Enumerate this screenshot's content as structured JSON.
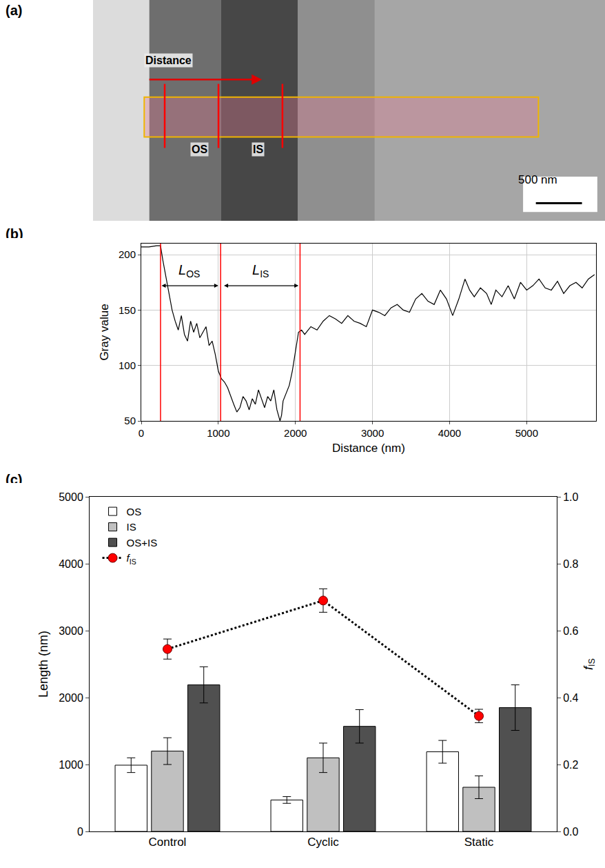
{
  "chart_data": [
    {
      "type": "image",
      "panel": "(a)",
      "labels": {
        "arrow": "Distance",
        "regions": [
          "OS",
          "IS"
        ],
        "scale_bar": "500 nm"
      }
    },
    {
      "type": "line",
      "panel": "(b)",
      "x_label": "Distance (nm)",
      "y_label": "Gray value",
      "x": [
        0,
        100,
        200,
        250,
        280,
        320,
        360,
        400,
        440,
        480,
        520,
        560,
        600,
        640,
        680,
        720,
        760,
        800,
        840,
        880,
        920,
        960,
        1000,
        1040,
        1080,
        1120,
        1160,
        1200,
        1240,
        1280,
        1320,
        1360,
        1400,
        1440,
        1480,
        1520,
        1560,
        1600,
        1640,
        1680,
        1720,
        1760,
        1800,
        1820,
        1840,
        1880,
        1920,
        1960,
        2000,
        2040,
        2080,
        2120,
        2200,
        2280,
        2360,
        2440,
        2520,
        2600,
        2680,
        2760,
        2840,
        2920,
        3000,
        3080,
        3160,
        3240,
        3320,
        3400,
        3480,
        3560,
        3640,
        3720,
        3800,
        3880,
        3960,
        4000,
        4040,
        4120,
        4200,
        4260,
        4320,
        4400,
        4480,
        4540,
        4600,
        4680,
        4760,
        4840,
        4920,
        5000,
        5080,
        5160,
        5240,
        5320,
        5400,
        5480,
        5560,
        5640,
        5720,
        5800,
        5880
      ],
      "values": [
        207,
        207,
        208,
        208,
        195,
        180,
        165,
        150,
        140,
        132,
        145,
        128,
        122,
        140,
        130,
        138,
        125,
        130,
        135,
        118,
        122,
        110,
        95,
        88,
        85,
        80,
        72,
        65,
        58,
        62,
        72,
        68,
        60,
        70,
        65,
        78,
        70,
        62,
        72,
        68,
        78,
        60,
        50,
        55,
        68,
        75,
        82,
        95,
        112,
        130,
        132,
        128,
        135,
        132,
        140,
        145,
        142,
        138,
        145,
        140,
        138,
        135,
        150,
        148,
        145,
        152,
        155,
        150,
        148,
        160,
        165,
        158,
        155,
        168,
        160,
        152,
        145,
        160,
        178,
        168,
        162,
        170,
        165,
        155,
        168,
        162,
        172,
        160,
        175,
        168,
        172,
        178,
        170,
        168,
        176,
        165,
        172,
        175,
        170,
        178,
        182
      ],
      "color": "#000000",
      "xlim": [
        0,
        5900
      ],
      "xticks": [
        0,
        1000,
        2000,
        3000,
        4000,
        5000
      ],
      "ylim": [
        50,
        210
      ],
      "yticks": [
        50,
        100,
        150,
        200
      ],
      "grid": true,
      "vlines": [
        250,
        1030,
        2060
      ],
      "vline_color": "#ff0000",
      "annotations": [
        {
          "label": "L",
          "subscript": "OS",
          "x0": 250,
          "x1": 1000,
          "y": 172
        },
        {
          "label": "L",
          "subscript": "IS",
          "x0": 1060,
          "x1": 2040,
          "y": 172
        }
      ]
    },
    {
      "type": "bar",
      "panel": "(c)",
      "categories": [
        "Control",
        "Cyclic",
        "Static"
      ],
      "y_label": "Length (nm)",
      "y2_label": {
        "text": "f",
        "subscript": "IS"
      },
      "series": [
        {
          "name": "OS",
          "color": "#ffffff",
          "values": [
            990,
            470,
            1190
          ],
          "errors": [
            110,
            50,
            170
          ]
        },
        {
          "name": "IS",
          "color": "#c0c0c0",
          "values": [
            1200,
            1100,
            660
          ],
          "errors": [
            200,
            220,
            170
          ]
        },
        {
          "name": "OS+IS",
          "color": "#505050",
          "values": [
            2190,
            1570,
            1850
          ],
          "errors": [
            270,
            250,
            340
          ]
        },
        {
          "name": {
            "text": "f",
            "subscript": "IS"
          },
          "type": "line",
          "axis": "y2",
          "color": "#ff0000",
          "marker": "circle",
          "line_style": "dot",
          "values": [
            0.545,
            0.69,
            0.345
          ],
          "errors": [
            0.03,
            0.035,
            0.02
          ]
        }
      ],
      "ylim": [
        0,
        5000
      ],
      "yticks": [
        0,
        1000,
        2000,
        3000,
        4000,
        5000
      ],
      "y2lim": [
        0,
        1
      ],
      "y2ticks": [
        {
          "value": 0,
          "label": "0.0"
        },
        0.2,
        0.4,
        0.6,
        0.8,
        {
          "value": 1,
          "label": "1.0"
        }
      ],
      "legend": "top-left",
      "grid": false
    }
  ]
}
